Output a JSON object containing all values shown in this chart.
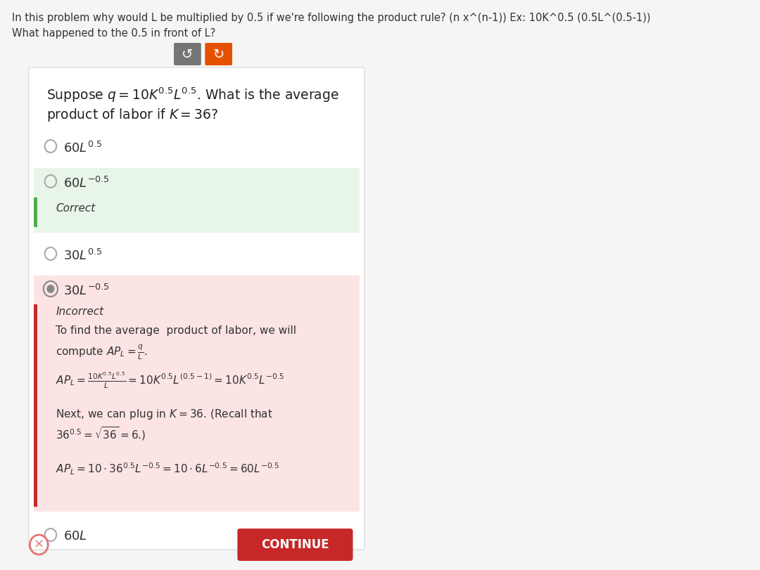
{
  "bg_color": "#f5f5f5",
  "header_text_line1": "In this problem why would L be multiplied by 0.5 if we're following the product rule? (n x^(n-1)) Ex: 10K^0.5 (0.5L^(0.5-1))",
  "header_text_line2": "What happened to the 0.5 in front of L?",
  "card_bg": "#ffffff",
  "card_border": "#dddddd",
  "question_line1": "Suppose $q = 10K^{0.5}L^{0.5}$. What is the average",
  "question_line2": "product of labor if $K = 36$?",
  "correct_bg": "#e8f5e9",
  "correct_bar": "#4caf50",
  "incorrect_bg": "#fce4e4",
  "incorrect_bar": "#c62828",
  "incorrect_label": "Incorrect",
  "correct_label": "Correct",
  "button_text": "CONTINUE",
  "button_bg": "#c62828",
  "button_text_color": "#ffffff",
  "icon_undo_bg": "#757575",
  "icon_redo_bg": "#e65100",
  "footer_x_color": "#e57373"
}
